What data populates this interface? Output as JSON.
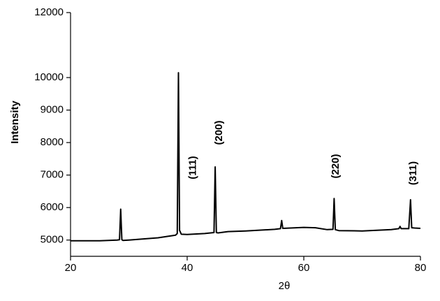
{
  "chart_data": {
    "type": "line",
    "x_label": "2θ",
    "y_label": "Intensity",
    "x": [
      20,
      25,
      28,
      28.4,
      28.6,
      28.8,
      29,
      30,
      35,
      38,
      38.3,
      38.5,
      38.7,
      39,
      40,
      43,
      44.6,
      44.8,
      45,
      45.3,
      47,
      50,
      55,
      56,
      56.2,
      56.4,
      60,
      62,
      64,
      65,
      65.2,
      65.4,
      66,
      70,
      75,
      76.3,
      76.5,
      76.7,
      78,
      78.3,
      78.5,
      79,
      80
    ],
    "series": [
      {
        "color": "#000000",
        "values": [
          4980,
          4980,
          5000,
          5010,
          5950,
          5010,
          4990,
          5000,
          5070,
          5150,
          5200,
          10150,
          5300,
          5180,
          5170,
          5200,
          5230,
          7250,
          5230,
          5220,
          5260,
          5280,
          5330,
          5350,
          5600,
          5360,
          5390,
          5380,
          5320,
          5330,
          6280,
          5320,
          5290,
          5280,
          5320,
          5350,
          5420,
          5350,
          5350,
          6240,
          5380,
          5370,
          5360
        ]
      }
    ],
    "annotations": [
      "(111)",
      "(200)",
      "(220)",
      "(311)"
    ],
    "xlim": [
      20,
      80
    ],
    "xticks": [
      20,
      40,
      60,
      80
    ],
    "ylim": [
      4500,
      12000
    ],
    "yticks": [
      5000,
      6000,
      7000,
      8000,
      9000,
      10000,
      12000
    ]
  }
}
